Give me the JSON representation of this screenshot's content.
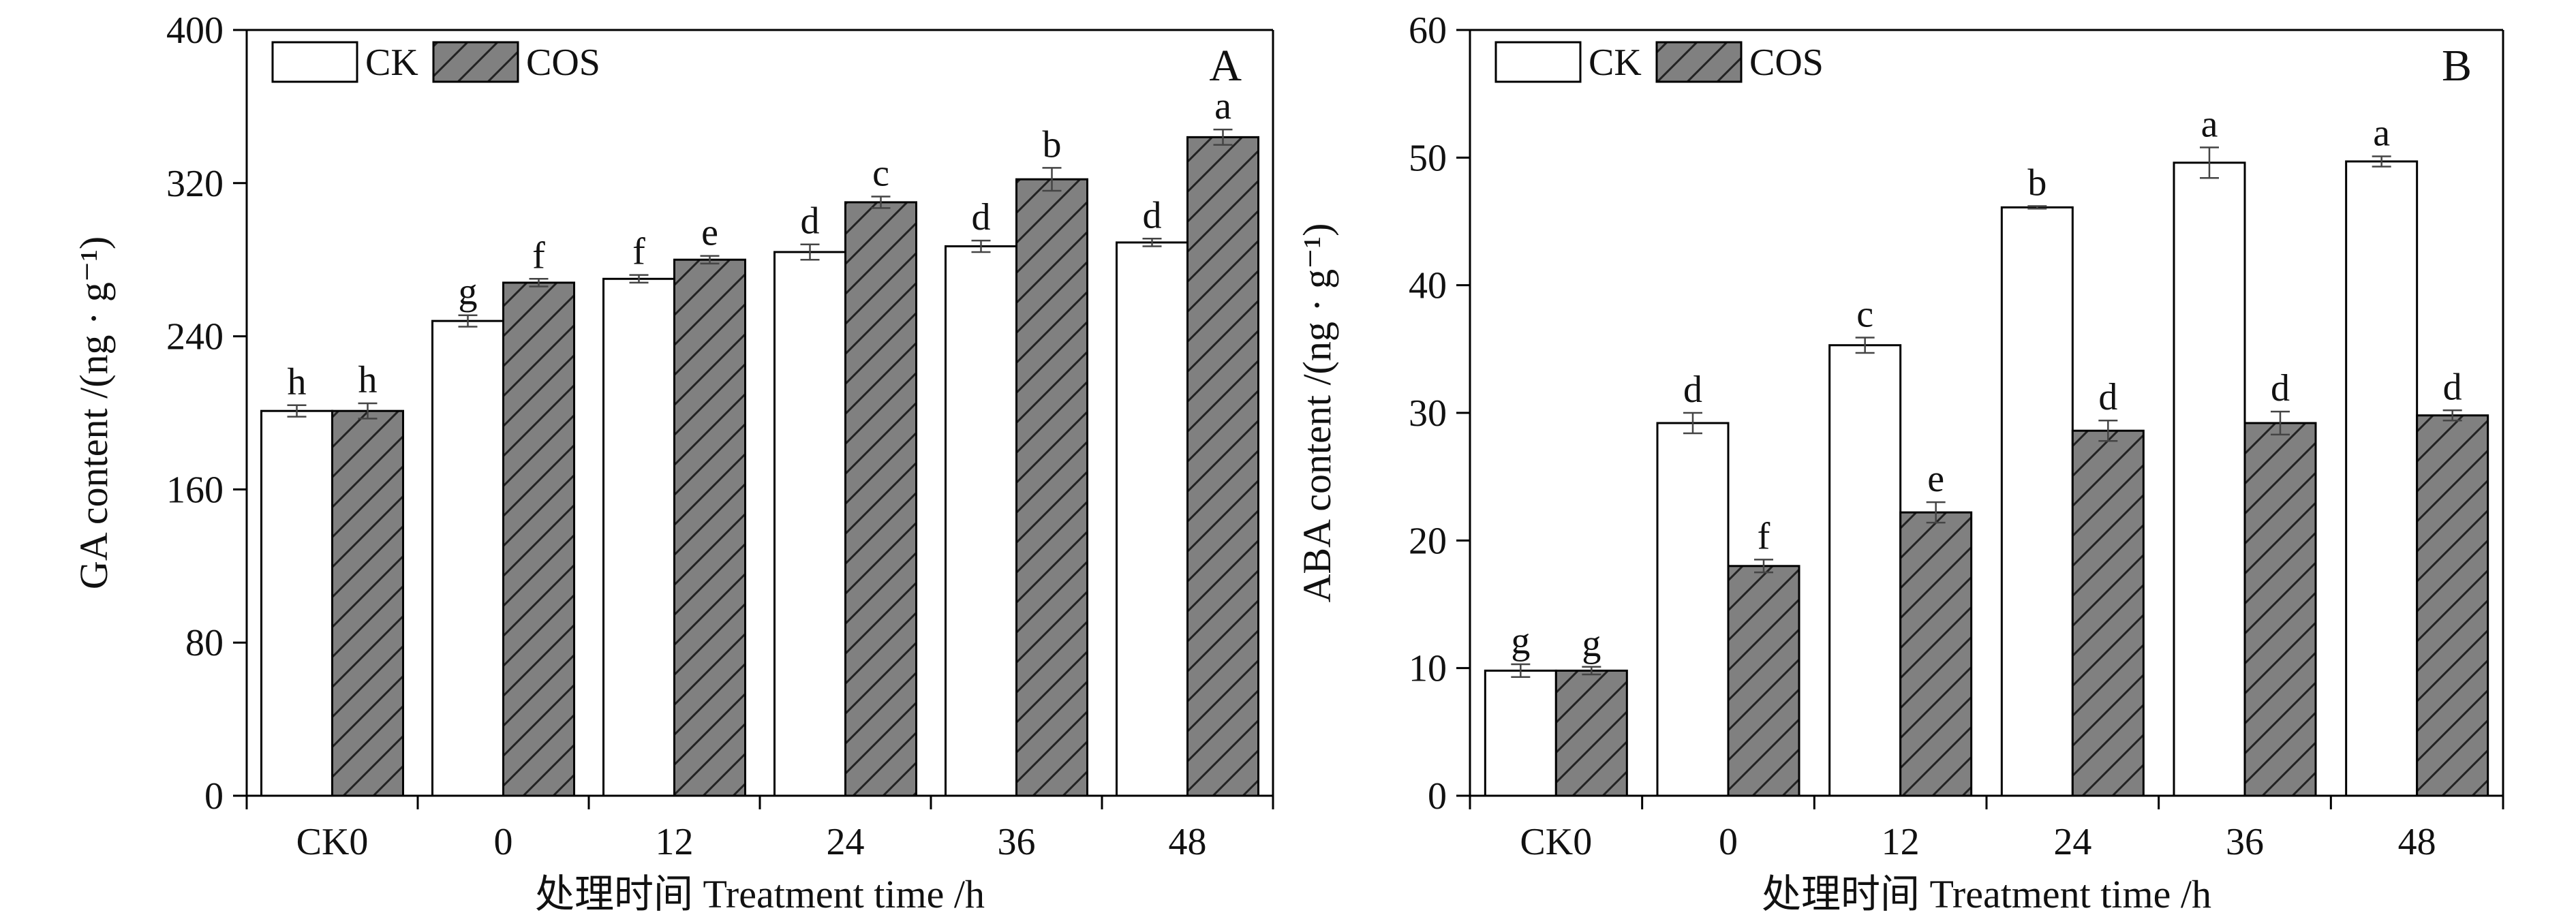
{
  "chart_data": [
    {
      "type": "bar",
      "panel_letter": "A",
      "categories": [
        "CK0",
        "0",
        "12",
        "24",
        "36",
        "48"
      ],
      "series": [
        {
          "name": "CK",
          "values": [
            201,
            248,
            270,
            284,
            287,
            289
          ],
          "errors": [
            3,
            3,
            2,
            4,
            3,
            2
          ],
          "labels": [
            "h",
            "g",
            "f",
            "d",
            "d",
            "d"
          ]
        },
        {
          "name": "COS",
          "values": [
            201,
            268,
            280,
            310,
            322,
            344
          ],
          "errors": [
            4,
            2,
            2,
            3,
            6,
            4
          ],
          "labels": [
            "h",
            "f",
            "e",
            "c",
            "b",
            "a"
          ]
        }
      ],
      "xlabel": "处理时间 Treatment time /h",
      "ylabel": "GA content /(ng · g⁻¹)",
      "yticks": [
        0,
        80,
        160,
        240,
        320,
        400
      ],
      "ylim": [
        0,
        400
      ],
      "legend": "top-left",
      "grid": false
    },
    {
      "type": "bar",
      "panel_letter": "B",
      "categories": [
        "CK0",
        "0",
        "12",
        "24",
        "36",
        "48"
      ],
      "series": [
        {
          "name": "CK",
          "values": [
            9.8,
            29.2,
            35.3,
            46.1,
            49.6,
            49.7
          ],
          "errors": [
            0.5,
            0.8,
            0.6,
            0.1,
            1.2,
            0.4
          ],
          "labels": [
            "g",
            "d",
            "c",
            "b",
            "a",
            "a"
          ]
        },
        {
          "name": "COS",
          "values": [
            9.8,
            18.0,
            22.2,
            28.6,
            29.2,
            29.8
          ],
          "errors": [
            0.3,
            0.5,
            0.8,
            0.8,
            0.9,
            0.4
          ],
          "labels": [
            "g",
            "f",
            "e",
            "d",
            "d",
            "d"
          ]
        }
      ],
      "xlabel": "处理时间 Treatment time /h",
      "ylabel": "ABA content /(ng · g⁻¹)",
      "yticks": [
        0,
        10,
        20,
        30,
        40,
        50,
        60
      ],
      "ylim": [
        0,
        60
      ],
      "legend": "top-left",
      "grid": false
    }
  ],
  "colors": {
    "ck_fill": "#ffffff",
    "cos_fill": "#808080",
    "stroke": "#000000"
  }
}
